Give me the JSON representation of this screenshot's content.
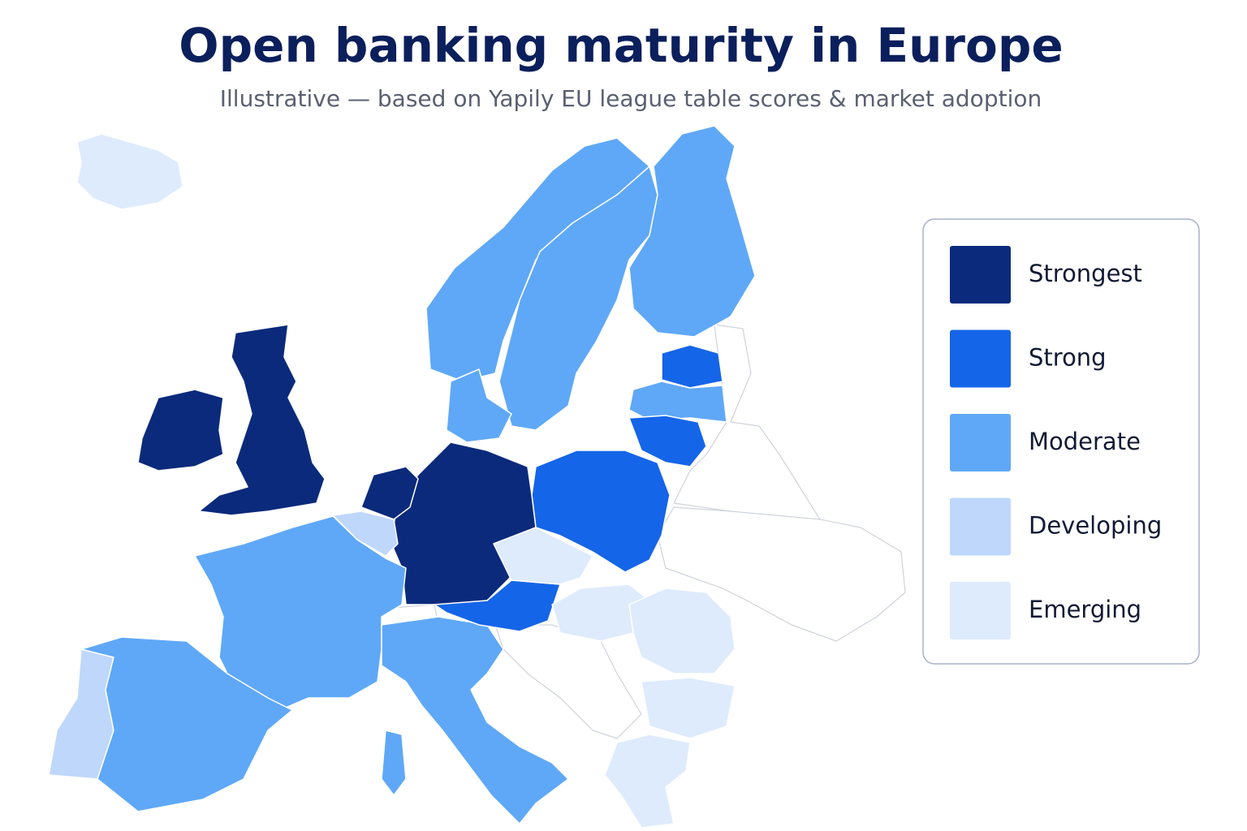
{
  "title": "Open banking maturity in Europe",
  "subtitle": "Illustrative — based on Yapily EU league table scores & market adoption",
  "legend": [
    {
      "label": "Strongest",
      "color": "#0b2a7c"
    },
    {
      "label": "Strong",
      "color": "#1565e8"
    },
    {
      "label": "Moderate",
      "color": "#5fa8f7"
    },
    {
      "label": "Developing",
      "color": "#bed7fb"
    },
    {
      "label": "Emerging",
      "color": "#deebfc"
    }
  ]
}
